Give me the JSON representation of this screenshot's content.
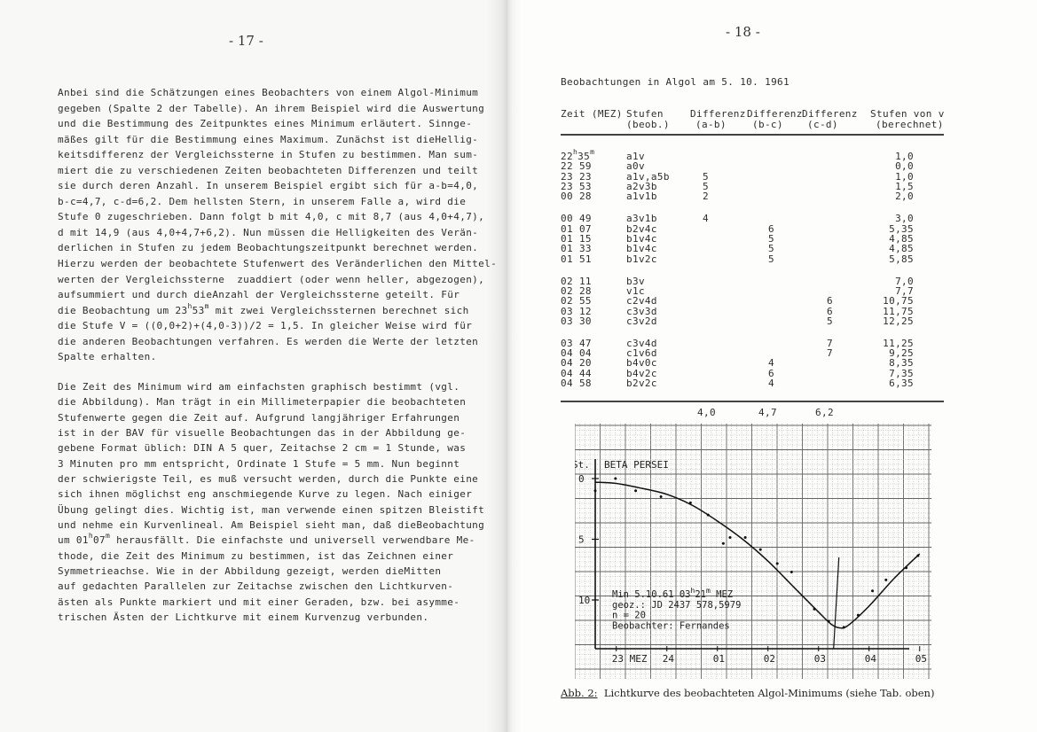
{
  "left_page": {
    "page_number": "- 17 -",
    "paragraph1": [
      "Anbei sind die Schätzungen eines Beobachters von einem Algol-Minimum",
      "gegeben (Spalte 2 der Tabelle). An ihrem Beispiel wird die Auswertung",
      "und die Bestimmung des Zeitpunktes eines Minimum erläutert. Sinnge-",
      "mäßes gilt für die Bestimmung eines Maximum. Zunächst ist dieHellig-",
      "keitsdifferenz der Vergleichssterne in Stufen zu bestimmen. Man sum-",
      "miert die zu verschiedenen Zeiten beobachteten Differenzen und teilt",
      "sie durch deren Anzahl. In unserem Beispiel ergibt sich für a-b=4,0,",
      "b-c=4,7, c-d=6,2. Dem hellsten Stern, in unserem Falle a, wird die",
      "Stufe 0 zugeschrieben. Dann folgt b mit 4,0, c mit 8,7 (aus 4,0+4,7),",
      "d mit 14,9 (aus 4,0+4,7+6,2). Nun müssen die Helligkeiten des Verän-",
      "derlichen in Stufen zu jedem Beobachtungszeitpunkt berechnet werden.",
      "Hierzu werden der beobachtete Stufenwert des Veränderlichen den Mittel-",
      "werten der Vergleichssterne  zuaddiert (oder wenn heller, abgezogen),",
      "aufsummiert und durch dieAnzahl der Vergleichssterne geteilt. Für",
      [
        "die Beobachtung um 23",
        "h",
        "53",
        "m",
        " mit zwei Vergleichssternen berechnet sich"
      ],
      "die Stufe V = ((0,0+2)+(4,0-3))/2 = 1,5. In gleicher Weise wird für",
      "die anderen Beobachtungen verfahren. Es werden die Werte der letzten",
      "Spalte erhalten."
    ],
    "paragraph2": [
      "Die Zeit des Minimum wird am einfachsten graphisch bestimmt (vgl.",
      "die Abbildung). Man trägt in ein Millimeterpapier die beobachteten",
      "Stufenwerte gegen die Zeit auf. Aufgrund langjähriger Erfahrungen",
      "ist in der BAV für visuelle Beobachtungen das in der Abbildung ge-",
      "gebene Format üblich: DIN A 5 quer, Zeitachse 2 cm = 1 Stunde, was",
      "3 Minuten pro mm entspricht, Ordinate 1 Stufe = 5 mm. Nun beginnt",
      "der schwierigste Teil, es muß versucht werden, durch die Punkte eine",
      "sich ihnen möglichst eng anschmiegende Kurve zu legen. Nach einiger",
      "Übung gelingt dies. Wichtig ist, man verwende einen spitzen Bleistift",
      "und nehme ein Kurvenlineal. Am Beispiel sieht man, daß dieBeobachtung",
      [
        "um 01",
        "h",
        "07",
        "m",
        " herausfällt. Die einfachste und universell verwendbare Me-"
      ],
      "thode, die Zeit des Minimum zu bestimmen, ist das Zeichnen einer",
      "Symmetrieachse. Wie in der Abbildung gezeigt, werden dieMitten",
      "auf gedachten Parallelen zur Zeitachse zwischen den Lichtkurven-",
      "ästen als Punkte markiert und mit einer Geraden, bzw. bei asymme-",
      "trischen Ästen der Lichtkurve mit einem Kurvenzug verbunden."
    ]
  },
  "right_page": {
    "page_number": "- 18 -",
    "table_title": "Beobachtungen in Algol am 5. 10. 1961",
    "table": {
      "headers": [
        {
          "line1": "Zeit (MEZ)",
          "line2": ""
        },
        {
          "line1": "Stufen",
          "line2": "(beob.)"
        },
        {
          "line1": "Differenz",
          "line2": "(a-b)"
        },
        {
          "line1": "Differenz",
          "line2": "(b-c)"
        },
        {
          "line1": "Differenz",
          "line2": "(c-d)"
        },
        {
          "line1": "Stufen von v",
          "line2": "(berechnet)"
        }
      ],
      "time_units": [
        "h",
        "m"
      ],
      "rows": [
        {
          "h": "22",
          "m": "35",
          "beob": "a1v",
          "ab": "",
          "bc": "",
          "cd": "",
          "calc": "1,0",
          "group": 0
        },
        {
          "h": "22",
          "m": "59",
          "beob": "a0v",
          "ab": "",
          "bc": "",
          "cd": "",
          "calc": "0,0",
          "group": 0
        },
        {
          "h": "23",
          "m": "23",
          "beob": "a1v,a5b",
          "ab": "5",
          "bc": "",
          "cd": "",
          "calc": "1,0",
          "group": 0
        },
        {
          "h": "23",
          "m": "53",
          "beob": "a2v3b",
          "ab": "5",
          "bc": "",
          "cd": "",
          "calc": "1,5",
          "group": 0
        },
        {
          "h": "00",
          "m": "28",
          "beob": "a1v1b",
          "ab": "2",
          "bc": "",
          "cd": "",
          "calc": "2,0",
          "group": 0
        },
        {
          "h": "00",
          "m": "49",
          "beob": "a3v1b",
          "ab": "4",
          "bc": "",
          "cd": "",
          "calc": "3,0",
          "group": 1
        },
        {
          "h": "01",
          "m": "07",
          "beob": "b2v4c",
          "ab": "",
          "bc": "6",
          "cd": "",
          "calc": "5,35",
          "group": 1
        },
        {
          "h": "01",
          "m": "15",
          "beob": "b1v4c",
          "ab": "",
          "bc": "5",
          "cd": "",
          "calc": "4,85",
          "group": 1
        },
        {
          "h": "01",
          "m": "33",
          "beob": "b1v4c",
          "ab": "",
          "bc": "5",
          "cd": "",
          "calc": "4,85",
          "group": 1
        },
        {
          "h": "01",
          "m": "51",
          "beob": "b1v2c",
          "ab": "",
          "bc": "5",
          "cd": "",
          "calc": "5,85",
          "group": 1
        },
        {
          "h": "02",
          "m": "11",
          "beob": "b3v",
          "ab": "",
          "bc": "",
          "cd": "",
          "calc": "7,0",
          "group": 2
        },
        {
          "h": "02",
          "m": "28",
          "beob": "v1c",
          "ab": "",
          "bc": "",
          "cd": "",
          "calc": "7,7",
          "group": 2
        },
        {
          "h": "02",
          "m": "55",
          "beob": "c2v4d",
          "ab": "",
          "bc": "",
          "cd": "6",
          "calc": "10,75",
          "group": 2
        },
        {
          "h": "03",
          "m": "12",
          "beob": "c3v3d",
          "ab": "",
          "bc": "",
          "cd": "6",
          "calc": "11,75",
          "group": 2
        },
        {
          "h": "03",
          "m": "30",
          "beob": "c3v2d",
          "ab": "",
          "bc": "",
          "cd": "5",
          "calc": "12,25",
          "group": 2
        },
        {
          "h": "03",
          "m": "47",
          "beob": "c3v4d",
          "ab": "",
          "bc": "",
          "cd": "7",
          "calc": "11,25",
          "group": 3
        },
        {
          "h": "04",
          "m": "04",
          "beob": "c1v6d",
          "ab": "",
          "bc": "",
          "cd": "7",
          "calc": "9,25",
          "group": 3
        },
        {
          "h": "04",
          "m": "20",
          "beob": "b4v0c",
          "ab": "",
          "bc": "4",
          "cd": "",
          "calc": "8,35",
          "group": 3
        },
        {
          "h": "04",
          "m": "44",
          "beob": "b4v2c",
          "ab": "",
          "bc": "6",
          "cd": "",
          "calc": "7,35",
          "group": 3
        },
        {
          "h": "04",
          "m": "58",
          "beob": "b2v2c",
          "ab": "",
          "bc": "4",
          "cd": "",
          "calc": "6,35",
          "group": 3
        }
      ],
      "means": {
        "ab": "4,0",
        "bc": "4,7",
        "cd": "6,2"
      }
    },
    "figure": {
      "caption_label": "Abb. 2:",
      "caption_text": "Lichtkurve des beobachteten Algol-Minimums (siehe Tab. oben)"
    }
  },
  "chart_data": {
    "type": "scatter",
    "title": "BETA PERSEI",
    "ylabel": "St.",
    "xlabel": "MEZ",
    "y_inverted": true,
    "ylim": [
      0,
      13.5
    ],
    "yticks": [
      "0",
      "5",
      "10"
    ],
    "xticks": [
      "23 MEZ",
      "24",
      "01",
      "02",
      "03",
      "04",
      "05"
    ],
    "grid": "millimeter paper",
    "points": [
      {
        "t": "22:35",
        "v": 1.0
      },
      {
        "t": "22:59",
        "v": 0.0
      },
      {
        "t": "23:23",
        "v": 1.0
      },
      {
        "t": "23:53",
        "v": 1.5
      },
      {
        "t": "00:28",
        "v": 2.0
      },
      {
        "t": "00:49",
        "v": 3.0
      },
      {
        "t": "01:07",
        "v": 5.35
      },
      {
        "t": "01:15",
        "v": 4.85
      },
      {
        "t": "01:33",
        "v": 4.85
      },
      {
        "t": "01:51",
        "v": 5.85
      },
      {
        "t": "02:11",
        "v": 7.0
      },
      {
        "t": "02:28",
        "v": 7.7
      },
      {
        "t": "02:55",
        "v": 10.75
      },
      {
        "t": "03:12",
        "v": 11.75
      },
      {
        "t": "03:30",
        "v": 12.25
      },
      {
        "t": "03:47",
        "v": 11.25
      },
      {
        "t": "04:04",
        "v": 9.25
      },
      {
        "t": "04:20",
        "v": 8.35
      },
      {
        "t": "04:44",
        "v": 7.35
      },
      {
        "t": "04:58",
        "v": 6.35
      }
    ],
    "fitted_curve": [
      {
        "t": "22:35",
        "v": 0.3
      },
      {
        "t": "23:00",
        "v": 0.4
      },
      {
        "t": "23:30",
        "v": 0.8
      },
      {
        "t": "24:00",
        "v": 1.3
      },
      {
        "t": "00:30",
        "v": 2.2
      },
      {
        "t": "01:00",
        "v": 3.5
      },
      {
        "t": "01:30",
        "v": 5.0
      },
      {
        "t": "02:00",
        "v": 6.8
      },
      {
        "t": "02:30",
        "v": 8.9
      },
      {
        "t": "03:00",
        "v": 11.0
      },
      {
        "t": "03:15",
        "v": 12.0
      },
      {
        "t": "03:25",
        "v": 12.3
      },
      {
        "t": "03:35",
        "v": 12.1
      },
      {
        "t": "04:00",
        "v": 10.5
      },
      {
        "t": "04:30",
        "v": 8.2
      },
      {
        "t": "05:00",
        "v": 6.2
      }
    ],
    "minimum_time": "03:21",
    "annotations": [
      [
        "Min 5.10.61 03",
        "h",
        "21",
        "m",
        " MEZ"
      ],
      "geoz.: JD 2437 578,5979",
      "n = 20",
      "Beobachter: Fernandes"
    ]
  }
}
